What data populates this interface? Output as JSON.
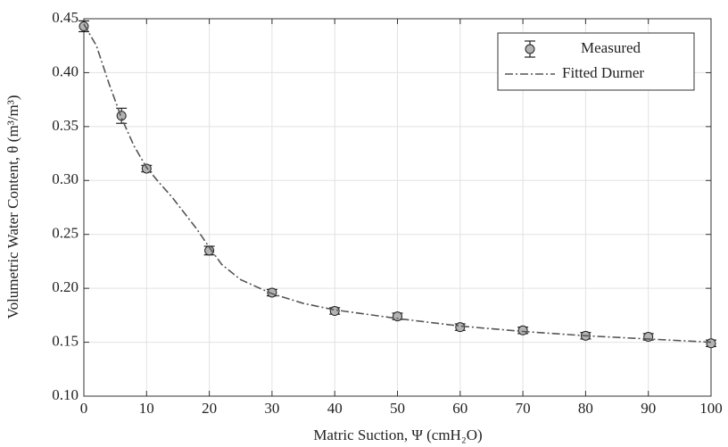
{
  "chart_data": {
    "type": "line",
    "xlabel": "Matric Suction, Ψ (cmH₂O)",
    "ylabel": "Volumetric Water Content, θ (m³/m³)",
    "series": [
      {
        "name": "Measured",
        "kind": "errorbar",
        "color": "#b3b3b3",
        "x": [
          0,
          6,
          10,
          20,
          30,
          40,
          50,
          60,
          70,
          80,
          90,
          100
        ],
        "values": [
          0.443,
          0.36,
          0.311,
          0.235,
          0.196,
          0.179,
          0.174,
          0.164,
          0.161,
          0.156,
          0.155,
          0.149
        ],
        "errors": [
          0.005,
          0.007,
          0.003,
          0.004,
          0.003,
          0.003,
          0.003,
          0.003,
          0.003,
          0.003,
          0.003,
          0.003
        ]
      },
      {
        "name": "Fitted Durner",
        "kind": "line",
        "color": "#555555",
        "x": [
          0,
          2,
          4,
          6,
          8,
          10,
          12,
          14,
          16,
          18,
          20,
          22,
          25,
          30,
          35,
          40,
          45,
          50,
          60,
          70,
          80,
          90,
          100
        ],
        "values": [
          0.445,
          0.425,
          0.39,
          0.358,
          0.332,
          0.312,
          0.298,
          0.285,
          0.27,
          0.255,
          0.238,
          0.222,
          0.208,
          0.195,
          0.186,
          0.18,
          0.176,
          0.172,
          0.165,
          0.16,
          0.156,
          0.153,
          0.15
        ]
      }
    ],
    "xlim": [
      0,
      100
    ],
    "xticks": [
      0,
      10,
      20,
      30,
      40,
      50,
      60,
      70,
      80,
      90,
      100
    ],
    "ylim": [
      0.1,
      0.45
    ],
    "yticks": [
      {
        "value": 0.1,
        "label": "0.10"
      },
      0.15,
      {
        "value": 0.2,
        "label": "0.20"
      },
      0.25,
      {
        "value": 0.3,
        "label": "0.30"
      },
      0.35,
      {
        "value": 0.4,
        "label": "0.40"
      },
      0.45
    ],
    "grid": true,
    "legend": "top-right"
  }
}
